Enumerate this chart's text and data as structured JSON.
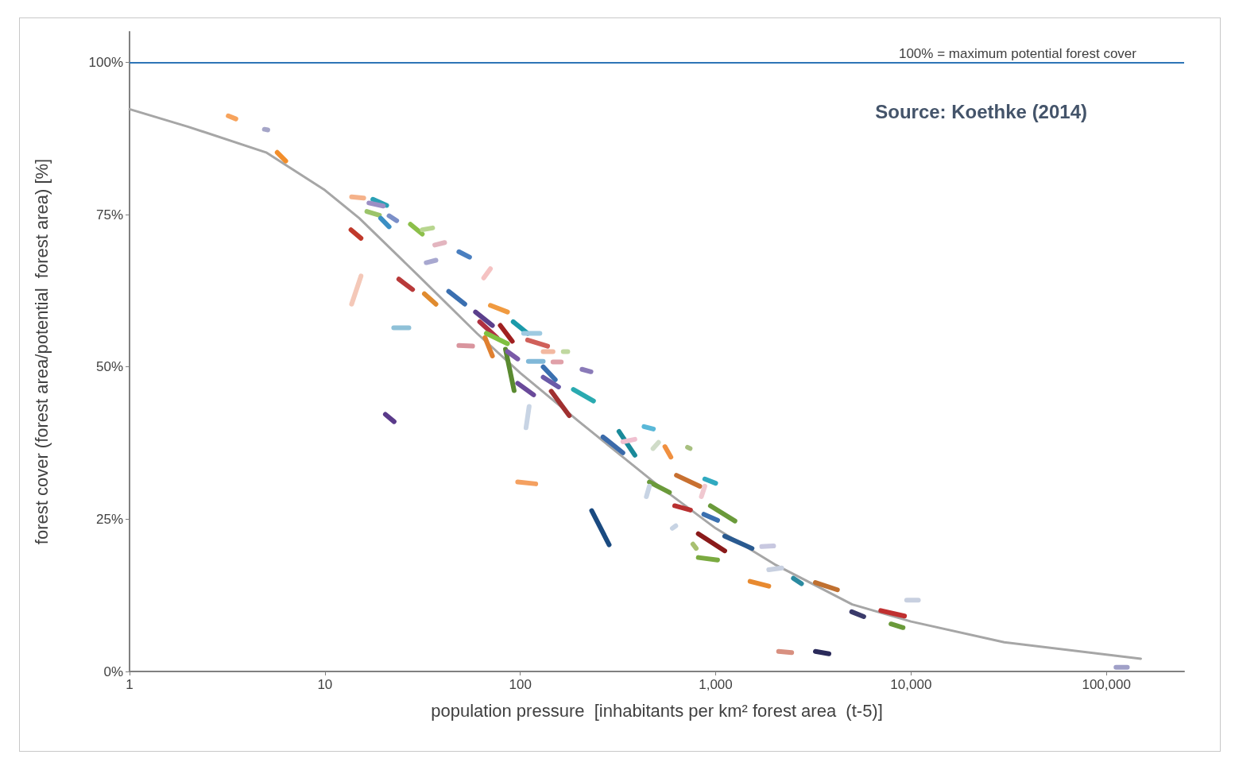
{
  "chart_data": {
    "type": "line",
    "xlabel": "population pressure  [inhabitants per km² forest area  (t-5)]",
    "ylabel": "forest cover (forest area/potential  forest area) [%]",
    "log": "x",
    "grid": false,
    "marker": "none",
    "xlim": [
      1,
      250000
    ],
    "xticks": [
      1,
      10,
      100,
      {
        "value": 1000,
        "label": "1,000"
      },
      {
        "value": 10000,
        "label": "10,000"
      },
      {
        "value": 100000,
        "label": "100,000"
      }
    ],
    "ylim": [
      0,
      105
    ],
    "yticks": [
      {
        "value": 0,
        "label": "0%"
      },
      {
        "value": 25,
        "label": "25%"
      },
      {
        "value": 50,
        "label": "50%"
      },
      {
        "value": 75,
        "label": "75%"
      },
      {
        "value": 100,
        "label": "100%"
      }
    ],
    "ref_lines": [
      {
        "axis": "y",
        "value": 100,
        "label": "100% = maximum potential forest cover",
        "color": "#2e75b6"
      }
    ],
    "annotations": [
      "Source: Koethke (2014)"
    ],
    "series": [
      {
        "color": "#a6a6a6",
        "x": [
          1,
          2,
          5,
          10,
          15,
          30,
          60,
          100,
          200,
          500,
          1000,
          2000,
          5000,
          10000,
          30000,
          150000
        ],
        "values": [
          92.3,
          89.4,
          85.2,
          79,
          74.4,
          65,
          55.5,
          49,
          41,
          30.7,
          23.5,
          17.6,
          11,
          8.2,
          4.8,
          2.1
        ]
      },
      {
        "color": "#f7a35c",
        "x": [
          3.2,
          3.5
        ],
        "values": [
          91.2,
          90.7
        ]
      },
      {
        "color": "#a5a5c8",
        "x": [
          4.9,
          5.1
        ],
        "values": [
          89.0,
          88.9
        ]
      },
      {
        "color": "#f28e2b",
        "x": [
          5.7,
          6.3
        ],
        "values": [
          85.2,
          83.8
        ]
      },
      {
        "color": "#f5b28a",
        "x": [
          13.7,
          15.8
        ],
        "values": [
          77.9,
          77.7
        ]
      },
      {
        "color": "#2aa0b5",
        "x": [
          17.6,
          20.7
        ],
        "values": [
          77.5,
          76.5
        ]
      },
      {
        "color": "#9b8ec4",
        "x": [
          16.8,
          19.9
        ],
        "values": [
          76.9,
          76.4
        ]
      },
      {
        "color": "#9bc46a",
        "x": [
          16.4,
          19
        ],
        "values": [
          75.5,
          74.9
        ]
      },
      {
        "color": "#3b8fc4",
        "x": [
          19.3,
          21.3
        ],
        "values": [
          74.4,
          73
        ]
      },
      {
        "color": "#7b8fc8",
        "x": [
          21.3,
          23.3
        ],
        "values": [
          74.8,
          74.0
        ]
      },
      {
        "color": "#8cbf4a",
        "x": [
          27.4,
          31.5
        ],
        "values": [
          73.4,
          71.8
        ]
      },
      {
        "color": "#b8d68f",
        "x": [
          31.5,
          35.6
        ],
        "values": [
          72.5,
          72.8
        ]
      },
      {
        "color": "#c0392b",
        "x": [
          13.6,
          15.3
        ],
        "values": [
          72.5,
          71.1
        ]
      },
      {
        "color": "#e3b5bf",
        "x": [
          36.5,
          41
        ],
        "values": [
          70,
          70.4
        ]
      },
      {
        "color": "#4a7fc0",
        "x": [
          48.5,
          55
        ],
        "values": [
          68.9,
          68.0
        ]
      },
      {
        "color": "#a8a8d0",
        "x": [
          33,
          37
        ],
        "values": [
          67.1,
          67.5
        ]
      },
      {
        "color": "#f5c2c2",
        "x": [
          65,
          70.3
        ],
        "values": [
          64.6,
          66.1
        ]
      },
      {
        "color": "#f4c8b8",
        "x": [
          13.7,
          15.3
        ],
        "values": [
          60.3,
          64.9
        ]
      },
      {
        "color": "#b83a3a",
        "x": [
          23.9,
          28.1
        ],
        "values": [
          64.4,
          62.7
        ]
      },
      {
        "color": "#e08b2f",
        "x": [
          32.3,
          37
        ],
        "values": [
          62,
          60.3
        ]
      },
      {
        "color": "#3a6fb0",
        "x": [
          43,
          52
        ],
        "values": [
          62.4,
          60.3
        ]
      },
      {
        "color": "#8fc1d8",
        "x": [
          22.5,
          26.9
        ],
        "values": [
          56.4,
          56.4
        ]
      },
      {
        "color": "#d9959e",
        "x": [
          48.5,
          57
        ],
        "values": [
          53.5,
          53.4
        ]
      },
      {
        "color": "#f09a40",
        "x": [
          70.3,
          86
        ],
        "values": [
          60.1,
          59
        ]
      },
      {
        "color": "#5b3f8c",
        "x": [
          59,
          72
        ],
        "values": [
          59,
          56.8
        ]
      },
      {
        "color": "#b03040",
        "x": [
          62,
          76
        ],
        "values": [
          57.4,
          54.8
        ]
      },
      {
        "color": "#e08030",
        "x": [
          66,
          72
        ],
        "values": [
          54.8,
          51.8
        ]
      },
      {
        "color": "#80c040",
        "x": [
          67,
          86
        ],
        "values": [
          55.5,
          53.8
        ]
      },
      {
        "color": "#a02020",
        "x": [
          79,
          91
        ],
        "values": [
          56.8,
          54.2
        ]
      },
      {
        "color": "#5a8a30",
        "x": [
          84,
          93
        ],
        "values": [
          52.9,
          46.1
        ]
      },
      {
        "color": "#7a5aa8",
        "x": [
          86,
          97
        ],
        "values": [
          52.5,
          51.3
        ]
      },
      {
        "color": "#1a9aaa",
        "x": [
          92,
          109
        ],
        "values": [
          57.4,
          55.5
        ]
      },
      {
        "color": "#9ecae1",
        "x": [
          104,
          126
        ],
        "values": [
          55.5,
          55.5
        ]
      },
      {
        "color": "#d0605a",
        "x": [
          109,
          138
        ],
        "values": [
          54.4,
          53.4
        ]
      },
      {
        "color": "#f2b8a0",
        "x": [
          131,
          147
        ],
        "values": [
          52.5,
          52.5
        ]
      },
      {
        "color": "#c0d8a0",
        "x": [
          166,
          175
        ],
        "values": [
          52.5,
          52.5
        ]
      },
      {
        "color": "#e0a0a8",
        "x": [
          147,
          162
        ],
        "values": [
          50.8,
          50.8
        ]
      },
      {
        "color": "#80b8d8",
        "x": [
          110,
          131
        ],
        "values": [
          50.9,
          50.9
        ]
      },
      {
        "color": "#8a7ab8",
        "x": [
          207,
          230
        ],
        "values": [
          49.6,
          49.2
        ]
      },
      {
        "color": "#6a4a9a",
        "x": [
          97,
          117
        ],
        "values": [
          47.3,
          45.4
        ]
      },
      {
        "color": "#3a70b0",
        "x": [
          131,
          151
        ],
        "values": [
          50,
          47.9
        ]
      },
      {
        "color": "#6a5aa8",
        "x": [
          131,
          157
        ],
        "values": [
          48.3,
          46.7
        ]
      },
      {
        "color": "#a03030",
        "x": [
          144,
          178
        ],
        "values": [
          46,
          42
        ]
      },
      {
        "color": "#2aaab0",
        "x": [
          187,
          237
        ],
        "values": [
          46.3,
          44.4
        ]
      },
      {
        "color": "#c8d4e4",
        "x": [
          111,
          107
        ],
        "values": [
          43.5,
          40
        ]
      },
      {
        "color": "#5a3a8a",
        "x": [
          20.4,
          22.6
        ],
        "values": [
          42.2,
          41
        ]
      },
      {
        "color": "#f4a060",
        "x": [
          97,
          120
        ],
        "values": [
          31.1,
          30.8
        ]
      },
      {
        "color": "#3a6aaa",
        "x": [
          265,
          335
        ],
        "values": [
          38.5,
          35.9
        ]
      },
      {
        "color": "#1a8a9a",
        "x": [
          320,
          386
        ],
        "values": [
          39.4,
          35.5
        ]
      },
      {
        "color": "#f0c0d0",
        "x": [
          335,
          386
        ],
        "values": [
          37.7,
          38.1
        ]
      },
      {
        "color": "#5ab8d8",
        "x": [
          430,
          480
        ],
        "values": [
          40.2,
          39.8
        ]
      },
      {
        "color": "#d0dcc8",
        "x": [
          478,
          510
        ],
        "values": [
          36.6,
          37.6
        ]
      },
      {
        "color": "#f09040",
        "x": [
          550,
          590
        ],
        "values": [
          36.9,
          35.2
        ]
      },
      {
        "color": "#a8c080",
        "x": [
          718,
          740
        ],
        "values": [
          36.8,
          36.6
        ]
      },
      {
        "color": "#1a4a80",
        "x": [
          232,
          285
        ],
        "values": [
          26.4,
          20.8
        ]
      },
      {
        "color": "#6a9a3a",
        "x": [
          458,
          580
        ],
        "values": [
          31.1,
          29.4
        ]
      },
      {
        "color": "#c8d4e4",
        "x": [
          442,
          458
        ],
        "values": [
          28.7,
          30.4
        ]
      },
      {
        "color": "#c87030",
        "x": [
          630,
          830
        ],
        "values": [
          32.2,
          30.4
        ]
      },
      {
        "color": "#30aac0",
        "x": [
          880,
          1000
        ],
        "values": [
          31.6,
          30.9
        ]
      },
      {
        "color": "#f0c8d0",
        "x": [
          845,
          880
        ],
        "values": [
          28.7,
          30.4
        ]
      },
      {
        "color": "#b83030",
        "x": [
          617,
          743
        ],
        "values": [
          27.2,
          26.5
        ]
      },
      {
        "color": "#3a70b0",
        "x": [
          870,
          1023
        ],
        "values": [
          25.8,
          24.8
        ]
      },
      {
        "color": "#6a9a3a",
        "x": [
          940,
          1255
        ],
        "values": [
          27.2,
          24.7
        ]
      },
      {
        "color": "#c8d4e4",
        "x": [
          600,
          625
        ],
        "values": [
          23.5,
          23.9
        ]
      },
      {
        "color": "#8a1a1a",
        "x": [
          815,
          1113
        ],
        "values": [
          22.6,
          19.8
        ]
      },
      {
        "color": "#2a5a90",
        "x": [
          1113,
          1535
        ],
        "values": [
          22.2,
          20.2
        ]
      },
      {
        "color": "#c8c8e0",
        "x": [
          1722,
          1980
        ],
        "values": [
          20.5,
          20.6
        ]
      },
      {
        "color": "#a8c070",
        "x": [
          765,
          795
        ],
        "values": [
          20.9,
          20.2
        ]
      },
      {
        "color": "#7aaa40",
        "x": [
          815,
          1023
        ],
        "values": [
          18.7,
          18.3
        ]
      },
      {
        "color": "#c8d0e0",
        "x": [
          1870,
          2180
        ],
        "values": [
          16.7,
          17
        ]
      },
      {
        "color": "#e88a30",
        "x": [
          1500,
          1870
        ],
        "values": [
          14.8,
          14.0
        ]
      },
      {
        "color": "#2a8aa0",
        "x": [
          2500,
          2750
        ],
        "values": [
          15.3,
          14.4
        ]
      },
      {
        "color": "#c07030",
        "x": [
          3240,
          4200
        ],
        "values": [
          14.6,
          13.4
        ]
      },
      {
        "color": "#3a3a6a",
        "x": [
          4970,
          5730
        ],
        "values": [
          9.8,
          9.0
        ]
      },
      {
        "color": "#c03030",
        "x": [
          7000,
          9260
        ],
        "values": [
          10.0,
          9.1
        ]
      },
      {
        "color": "#6a9a3a",
        "x": [
          7900,
          9100
        ],
        "values": [
          7.8,
          7.2
        ]
      },
      {
        "color": "#c8d0e0",
        "x": [
          9500,
          10900
        ],
        "values": [
          11.7,
          11.7
        ]
      },
      {
        "color": "#d89080",
        "x": [
          2100,
          2450
        ],
        "values": [
          3.3,
          3.1
        ]
      },
      {
        "color": "#2a2a5a",
        "x": [
          3240,
          3800
        ],
        "values": [
          3.3,
          2.9
        ]
      },
      {
        "color": "#a0a0c8",
        "x": [
          112000,
          128000
        ],
        "values": [
          0.7,
          0.7
        ]
      }
    ]
  }
}
